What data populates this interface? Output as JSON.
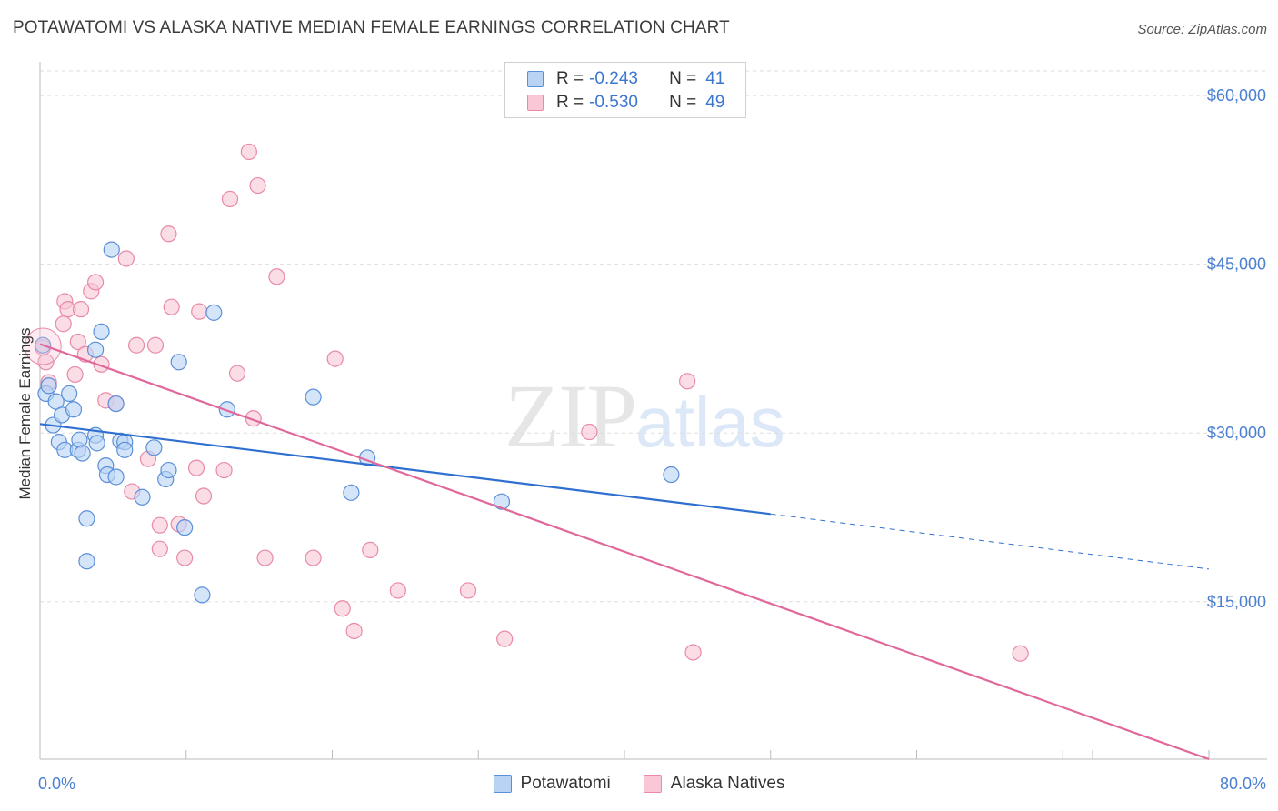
{
  "header": {
    "title": "POTAWATOMI VS ALASKA NATIVE MEDIAN FEMALE EARNINGS CORRELATION CHART",
    "source": "Source: ZipAtlas.com"
  },
  "watermark": {
    "zip": "ZIP",
    "atlas": "atlas"
  },
  "legend": {
    "r_label": "R =",
    "n_label": "N =",
    "rows": [
      {
        "r": "-0.243",
        "n": "41"
      },
      {
        "r": "-0.530",
        "n": "49"
      }
    ]
  },
  "colors": {
    "potawatomi_fill": "#b9d3f5",
    "potawatomi_stroke": "#5b8fd8",
    "potawatomi_line": "#2f6fd0",
    "alaska_fill": "#f9c7d6",
    "alaska_stroke": "#e88aa8",
    "alaska_line": "#e0689a",
    "grid": "#dddddd",
    "tick_label": "#4a7fd1"
  },
  "chart_data": {
    "type": "scatter",
    "xlabel": "",
    "ylabel": "Median Female Earnings",
    "xlim": [
      0,
      80
    ],
    "ylim": [
      1000,
      63000
    ],
    "x_tick_labels": [
      "0.0%",
      "80.0%"
    ],
    "y_ticks": [
      15000,
      30000,
      45000,
      60000
    ],
    "y_tick_labels": [
      "$15,000",
      "$30,000",
      "$45,000",
      "$60,000"
    ],
    "grid": true,
    "legend_position": "top-center",
    "series": [
      {
        "name": "Potawatomi",
        "points": [
          [
            0.2,
            37800
          ],
          [
            0.4,
            33500
          ],
          [
            0.6,
            34200
          ],
          [
            0.9,
            30700
          ],
          [
            1.1,
            32800
          ],
          [
            1.3,
            29200
          ],
          [
            1.5,
            31600
          ],
          [
            1.7,
            28500
          ],
          [
            2.0,
            33500
          ],
          [
            2.3,
            32100
          ],
          [
            2.6,
            28500
          ],
          [
            2.7,
            29400
          ],
          [
            2.9,
            28200
          ],
          [
            3.2,
            22400
          ],
          [
            3.2,
            18600
          ],
          [
            3.8,
            29800
          ],
          [
            3.8,
            37400
          ],
          [
            3.9,
            29100
          ],
          [
            4.2,
            39000
          ],
          [
            4.5,
            27100
          ],
          [
            4.6,
            26300
          ],
          [
            4.9,
            46300
          ],
          [
            5.2,
            26100
          ],
          [
            5.2,
            32600
          ],
          [
            5.5,
            29300
          ],
          [
            5.8,
            29200
          ],
          [
            5.8,
            28500
          ],
          [
            7.0,
            24300
          ],
          [
            7.8,
            28700
          ],
          [
            8.6,
            25900
          ],
          [
            8.8,
            26700
          ],
          [
            9.5,
            36300
          ],
          [
            9.9,
            21600
          ],
          [
            11.1,
            15600
          ],
          [
            11.9,
            40700
          ],
          [
            12.8,
            32100
          ],
          [
            18.7,
            33200
          ],
          [
            21.3,
            24700
          ],
          [
            22.4,
            27800
          ],
          [
            31.6,
            23900
          ],
          [
            43.2,
            26300
          ]
        ],
        "trend": {
          "x": [
            0,
            50
          ],
          "y": [
            30800,
            22800
          ],
          "dashed_x": [
            50,
            80
          ],
          "dashed_y": [
            22800,
            17900
          ]
        }
      },
      {
        "name": "Alaska Natives",
        "points": [
          [
            0.2,
            37600
          ],
          [
            0.4,
            36300
          ],
          [
            0.6,
            34500
          ],
          [
            1.6,
            39700
          ],
          [
            1.7,
            41700
          ],
          [
            1.9,
            41000
          ],
          [
            2.4,
            35200
          ],
          [
            2.6,
            38100
          ],
          [
            2.8,
            41000
          ],
          [
            3.1,
            37000
          ],
          [
            3.5,
            42600
          ],
          [
            3.8,
            43400
          ],
          [
            4.2,
            36100
          ],
          [
            4.5,
            32900
          ],
          [
            5.2,
            32600
          ],
          [
            5.9,
            45500
          ],
          [
            6.3,
            24800
          ],
          [
            6.6,
            37800
          ],
          [
            7.4,
            27700
          ],
          [
            7.9,
            37800
          ],
          [
            8.2,
            19700
          ],
          [
            8.2,
            21800
          ],
          [
            8.8,
            47700
          ],
          [
            9.0,
            41200
          ],
          [
            9.5,
            21900
          ],
          [
            9.9,
            18900
          ],
          [
            10.7,
            26900
          ],
          [
            10.9,
            40800
          ],
          [
            11.2,
            24400
          ],
          [
            12.6,
            26700
          ],
          [
            13.0,
            50800
          ],
          [
            13.5,
            35300
          ],
          [
            14.3,
            55000
          ],
          [
            14.6,
            31300
          ],
          [
            14.9,
            52000
          ],
          [
            15.4,
            18900
          ],
          [
            16.2,
            43900
          ],
          [
            18.7,
            18900
          ],
          [
            20.2,
            36600
          ],
          [
            20.7,
            14400
          ],
          [
            21.5,
            12400
          ],
          [
            22.6,
            19600
          ],
          [
            24.5,
            16000
          ],
          [
            29.3,
            16000
          ],
          [
            31.8,
            11700
          ],
          [
            37.6,
            30100
          ],
          [
            44.3,
            34600
          ],
          [
            44.7,
            10500
          ],
          [
            67.1,
            10400
          ]
        ],
        "trend": {
          "x": [
            0,
            80
          ],
          "y": [
            37900,
            1000
          ]
        }
      }
    ]
  }
}
